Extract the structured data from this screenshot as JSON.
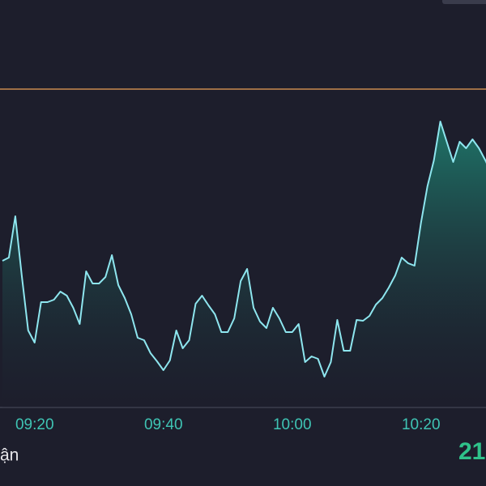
{
  "chart_data": {
    "type": "area",
    "categories": [
      null,
      null,
      null,
      null,
      null,
      "09:20",
      null,
      null,
      null,
      null,
      null,
      null,
      null,
      null,
      null,
      null,
      null,
      null,
      null,
      null,
      null,
      null,
      null,
      null,
      null,
      "09:40",
      null,
      null,
      null,
      null,
      null,
      null,
      null,
      null,
      null,
      null,
      null,
      null,
      null,
      null,
      null,
      null,
      null,
      null,
      null,
      "10:00",
      null,
      null,
      null,
      null,
      null,
      null,
      null,
      null,
      null,
      null,
      null,
      null,
      null,
      null,
      null,
      null,
      null,
      null,
      null,
      "10:20",
      null,
      null,
      null,
      null,
      null,
      null,
      null,
      null,
      null,
      null,
      null
    ],
    "values": [
      181,
      185,
      236,
      163,
      95,
      80,
      130,
      130,
      133,
      143,
      138,
      123,
      103,
      168,
      153,
      153,
      161,
      188,
      151,
      135,
      115,
      86,
      83,
      67,
      57,
      46,
      58,
      95,
      73,
      83,
      128,
      138,
      126,
      115,
      93,
      93,
      110,
      156,
      171,
      123,
      106,
      98,
      123,
      110,
      93,
      93,
      103,
      56,
      63,
      60,
      38,
      56,
      108,
      70,
      70,
      108,
      107,
      113,
      127,
      135,
      148,
      163,
      185,
      178,
      175,
      228,
      273,
      305,
      353,
      328,
      303,
      328,
      320,
      331,
      320,
      305,
      288
    ],
    "color": "#8ee6ef",
    "ylim": [
      0,
      400
    ],
    "reference_line": {
      "value": 393,
      "color": "#c98a4e"
    }
  },
  "footer": {
    "label": "ận",
    "value_text": "21"
  }
}
